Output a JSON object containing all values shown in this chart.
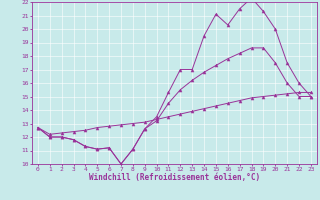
{
  "xlabel": "Windchill (Refroidissement éolien,°C)",
  "background_color": "#c8eaea",
  "line_color": "#993399",
  "spine_color": "#993399",
  "xlim": [
    -0.5,
    23.5
  ],
  "ylim": [
    10,
    22
  ],
  "yticks": [
    10,
    11,
    12,
    13,
    14,
    15,
    16,
    17,
    18,
    19,
    20,
    21,
    22
  ],
  "xticks": [
    0,
    1,
    2,
    3,
    4,
    5,
    6,
    7,
    8,
    9,
    10,
    11,
    12,
    13,
    14,
    15,
    16,
    17,
    18,
    19,
    20,
    21,
    22,
    23
  ],
  "series": {
    "line1": {
      "x": [
        0,
        1,
        2,
        3,
        4,
        5,
        6,
        7,
        8,
        9,
        10,
        11,
        12,
        13,
        14,
        15,
        16,
        17,
        18,
        19,
        20,
        21,
        22,
        23
      ],
      "y": [
        12.7,
        12.0,
        12.0,
        11.8,
        11.3,
        11.1,
        11.2,
        10.0,
        11.1,
        12.6,
        13.5,
        15.3,
        17.0,
        17.0,
        19.5,
        21.1,
        20.3,
        21.5,
        22.3,
        21.3,
        20.0,
        17.5,
        16.0,
        15.0
      ]
    },
    "line2": {
      "x": [
        0,
        1,
        2,
        3,
        4,
        5,
        6,
        7,
        8,
        9,
        10,
        11,
        12,
        13,
        14,
        15,
        16,
        17,
        18,
        19,
        20,
        21,
        22,
        23
      ],
      "y": [
        12.7,
        12.0,
        12.0,
        11.8,
        11.3,
        11.1,
        11.2,
        10.0,
        11.1,
        12.6,
        13.2,
        14.5,
        15.5,
        16.2,
        16.8,
        17.3,
        17.8,
        18.2,
        18.6,
        18.6,
        17.5,
        16.0,
        15.0,
        15.0
      ]
    },
    "line3": {
      "x": [
        0,
        1,
        2,
        3,
        4,
        5,
        6,
        7,
        8,
        9,
        10,
        11,
        12,
        13,
        14,
        15,
        16,
        17,
        18,
        19,
        20,
        21,
        22,
        23
      ],
      "y": [
        12.7,
        12.2,
        12.3,
        12.4,
        12.5,
        12.7,
        12.8,
        12.9,
        13.0,
        13.1,
        13.3,
        13.5,
        13.7,
        13.9,
        14.1,
        14.3,
        14.5,
        14.7,
        14.9,
        15.0,
        15.1,
        15.2,
        15.3,
        15.3
      ]
    }
  }
}
